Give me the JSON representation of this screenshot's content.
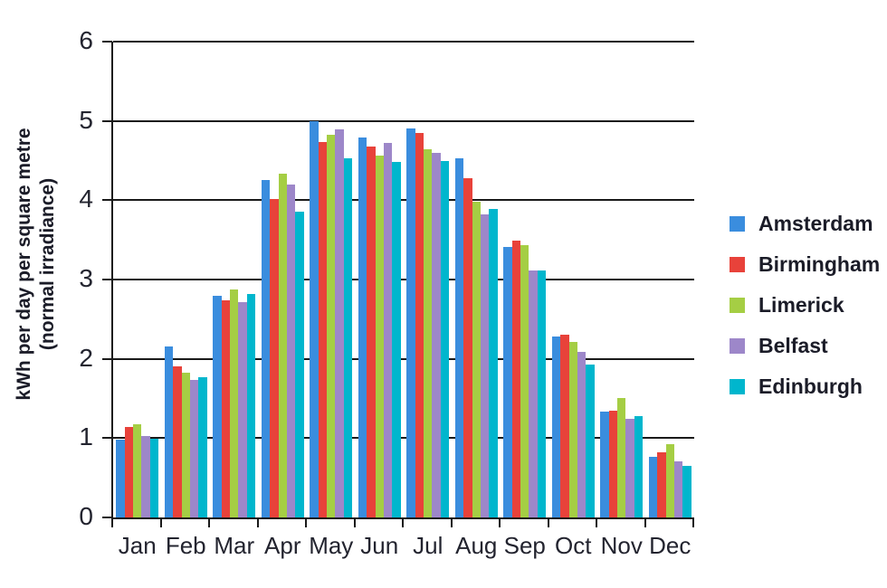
{
  "chart_data": {
    "type": "bar",
    "title": "",
    "ylabel_line1": "kWh per day per square metre",
    "ylabel_line2": "(normal irradiance)",
    "xlabel": "",
    "ylim": [
      0,
      6
    ],
    "y_ticks": [
      0,
      1,
      2,
      3,
      4,
      5,
      6
    ],
    "grid": "horizontal",
    "legend_position": "right",
    "categories": [
      "Jan",
      "Feb",
      "Mar",
      "Apr",
      "May",
      "Jun",
      "Jul",
      "Aug",
      "Sep",
      "Oct",
      "Nov",
      "Dec"
    ],
    "series": [
      {
        "name": "Amsterdam",
        "color": "#3A8DDE",
        "values": [
          0.98,
          2.16,
          2.8,
          4.26,
          5.0,
          4.79,
          4.9,
          4.53,
          3.41,
          2.28,
          1.33,
          0.76
        ]
      },
      {
        "name": "Birmingham",
        "color": "#E8423A",
        "values": [
          1.14,
          1.9,
          2.74,
          4.02,
          4.73,
          4.68,
          4.85,
          4.28,
          3.49,
          2.3,
          1.35,
          0.82
        ]
      },
      {
        "name": "Limerick",
        "color": "#A5CE44",
        "values": [
          1.17,
          1.82,
          2.87,
          4.33,
          4.82,
          4.56,
          4.64,
          3.98,
          3.43,
          2.21,
          1.51,
          0.92
        ]
      },
      {
        "name": "Belfast",
        "color": "#9D87C9",
        "values": [
          1.03,
          1.73,
          2.72,
          4.2,
          4.89,
          4.72,
          4.6,
          3.82,
          3.11,
          2.09,
          1.24,
          0.71
        ]
      },
      {
        "name": "Edinburgh",
        "color": "#00B6CD",
        "values": [
          0.99,
          1.77,
          2.82,
          3.86,
          4.53,
          4.48,
          4.5,
          3.89,
          3.11,
          1.93,
          1.28,
          0.65
        ]
      }
    ],
    "axis_color": "#1a1a1a",
    "text_color": "#20222e"
  }
}
